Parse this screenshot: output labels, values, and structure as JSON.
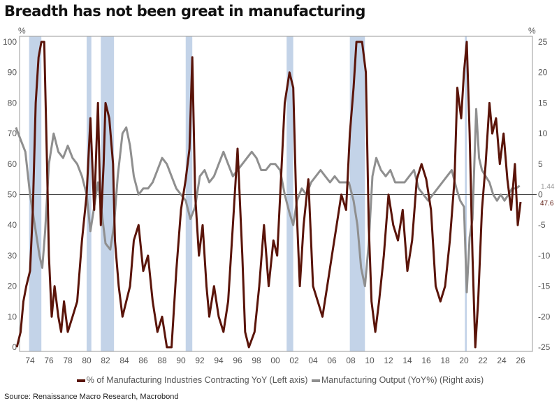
{
  "title": "Breadth has not been great in manufacturing",
  "source": "Source: Renaissance Macro Research, Macrobond",
  "chart_data": {
    "type": "line",
    "title": "Breadth has not been great in manufacturing",
    "left_axis": {
      "unit": "%",
      "range": [
        0,
        100
      ],
      "ticks": [
        0,
        10,
        20,
        30,
        40,
        50,
        60,
        70,
        80,
        90,
        100
      ]
    },
    "right_axis": {
      "unit": "%",
      "range": [
        -25,
        25
      ],
      "ticks": [
        -25,
        -20,
        -15,
        -10,
        -5,
        0,
        5,
        10,
        15,
        20,
        25
      ]
    },
    "x_range": [
      1972.3,
      2026.8
    ],
    "x_ticks": [
      1974,
      1976,
      1978,
      1980,
      1982,
      1984,
      1986,
      1988,
      1990,
      1992,
      1994,
      1996,
      1998,
      2000,
      2002,
      2004,
      2006,
      2008,
      2010,
      2012,
      2014,
      2016,
      2018,
      2020,
      2022,
      2024,
      2026
    ],
    "x_tick_labels": [
      "74",
      "76",
      "78",
      "80",
      "82",
      "84",
      "86",
      "88",
      "90",
      "92",
      "94",
      "96",
      "98",
      "00",
      "02",
      "04",
      "06",
      "08",
      "10",
      "12",
      "14",
      "16",
      "18",
      "20",
      "22",
      "24",
      "26"
    ],
    "reference_line": 50,
    "recessions": [
      [
        1973.9,
        1975.2
      ],
      [
        1980.0,
        1980.5
      ],
      [
        1981.5,
        1982.9
      ],
      [
        1990.5,
        1991.2
      ],
      [
        2001.2,
        2001.9
      ],
      [
        2007.9,
        2009.5
      ],
      [
        2020.1,
        2020.3
      ]
    ],
    "colors": {
      "contracting": "#5a1409",
      "output": "#8f8f8f",
      "recession": "#c3d3e8"
    },
    "series": [
      {
        "name": "% of Manufacturing Industries Contracting YoY  (Left axis)",
        "axis": "left",
        "last_label": "47.6",
        "points": [
          [
            1972.6,
            0
          ],
          [
            1973.0,
            5
          ],
          [
            1973.3,
            15
          ],
          [
            1973.6,
            20
          ],
          [
            1974.0,
            25
          ],
          [
            1974.3,
            45
          ],
          [
            1974.6,
            80
          ],
          [
            1974.9,
            95
          ],
          [
            1975.2,
            100
          ],
          [
            1975.5,
            100
          ],
          [
            1975.8,
            60
          ],
          [
            1976.0,
            30
          ],
          [
            1976.3,
            10
          ],
          [
            1976.6,
            20
          ],
          [
            1977.0,
            10
          ],
          [
            1977.3,
            5
          ],
          [
            1977.6,
            15
          ],
          [
            1978.0,
            5
          ],
          [
            1978.5,
            10
          ],
          [
            1979.0,
            15
          ],
          [
            1979.5,
            35
          ],
          [
            1980.0,
            50
          ],
          [
            1980.4,
            75
          ],
          [
            1980.8,
            45
          ],
          [
            1981.2,
            80
          ],
          [
            1981.5,
            40
          ],
          [
            1981.8,
            60
          ],
          [
            1982.0,
            80
          ],
          [
            1982.4,
            75
          ],
          [
            1982.8,
            60
          ],
          [
            1983.0,
            35
          ],
          [
            1983.4,
            20
          ],
          [
            1983.8,
            10
          ],
          [
            1984.2,
            15
          ],
          [
            1984.6,
            20
          ],
          [
            1985.0,
            35
          ],
          [
            1985.5,
            40
          ],
          [
            1986.0,
            25
          ],
          [
            1986.5,
            30
          ],
          [
            1987.0,
            15
          ],
          [
            1987.5,
            5
          ],
          [
            1988.0,
            10
          ],
          [
            1988.5,
            0
          ],
          [
            1989.0,
            0
          ],
          [
            1989.5,
            25
          ],
          [
            1990.0,
            45
          ],
          [
            1990.5,
            55
          ],
          [
            1990.9,
            65
          ],
          [
            1991.2,
            95
          ],
          [
            1991.5,
            50
          ],
          [
            1991.9,
            30
          ],
          [
            1992.3,
            40
          ],
          [
            1992.7,
            20
          ],
          [
            1993.0,
            10
          ],
          [
            1993.5,
            20
          ],
          [
            1994.0,
            10
          ],
          [
            1994.5,
            5
          ],
          [
            1995.0,
            15
          ],
          [
            1995.5,
            40
          ],
          [
            1996.0,
            65
          ],
          [
            1996.5,
            30
          ],
          [
            1996.8,
            5
          ],
          [
            1997.2,
            0
          ],
          [
            1997.8,
            5
          ],
          [
            1998.3,
            20
          ],
          [
            1998.8,
            40
          ],
          [
            1999.3,
            20
          ],
          [
            1999.8,
            35
          ],
          [
            2000.2,
            30
          ],
          [
            2000.6,
            55
          ],
          [
            2001.0,
            80
          ],
          [
            2001.5,
            90
          ],
          [
            2001.9,
            85
          ],
          [
            2002.2,
            50
          ],
          [
            2002.6,
            20
          ],
          [
            2003.0,
            40
          ],
          [
            2003.5,
            55
          ],
          [
            2004.0,
            20
          ],
          [
            2004.5,
            15
          ],
          [
            2005.0,
            10
          ],
          [
            2005.5,
            20
          ],
          [
            2006.0,
            30
          ],
          [
            2006.5,
            40
          ],
          [
            2007.0,
            50
          ],
          [
            2007.5,
            45
          ],
          [
            2007.9,
            70
          ],
          [
            2008.3,
            85
          ],
          [
            2008.6,
            100
          ],
          [
            2009.2,
            100
          ],
          [
            2009.6,
            90
          ],
          [
            2009.9,
            40
          ],
          [
            2010.2,
            15
          ],
          [
            2010.6,
            5
          ],
          [
            2011.0,
            15
          ],
          [
            2011.5,
            30
          ],
          [
            2012.0,
            50
          ],
          [
            2012.5,
            40
          ],
          [
            2013.0,
            35
          ],
          [
            2013.5,
            45
          ],
          [
            2014.0,
            25
          ],
          [
            2014.5,
            35
          ],
          [
            2015.0,
            55
          ],
          [
            2015.5,
            60
          ],
          [
            2016.0,
            55
          ],
          [
            2016.5,
            45
          ],
          [
            2017.0,
            20
          ],
          [
            2017.5,
            15
          ],
          [
            2018.0,
            20
          ],
          [
            2018.5,
            35
          ],
          [
            2019.0,
            55
          ],
          [
            2019.3,
            85
          ],
          [
            2019.7,
            75
          ],
          [
            2020.0,
            90
          ],
          [
            2020.3,
            100
          ],
          [
            2020.6,
            70
          ],
          [
            2020.9,
            30
          ],
          [
            2021.2,
            0
          ],
          [
            2021.5,
            15
          ],
          [
            2021.9,
            45
          ],
          [
            2022.3,
            60
          ],
          [
            2022.7,
            80
          ],
          [
            2023.0,
            70
          ],
          [
            2023.4,
            75
          ],
          [
            2023.8,
            60
          ],
          [
            2024.2,
            70
          ],
          [
            2024.6,
            55
          ],
          [
            2025.0,
            45
          ],
          [
            2025.4,
            60
          ],
          [
            2025.7,
            40
          ],
          [
            2026.0,
            47.6
          ]
        ]
      },
      {
        "name": "Manufacturing Output (YoY%) (Right axis)",
        "axis": "right",
        "last_label": "1.44",
        "points": [
          [
            1972.5,
            11
          ],
          [
            1973.0,
            9
          ],
          [
            1973.5,
            7
          ],
          [
            1974.0,
            0
          ],
          [
            1974.5,
            -5
          ],
          [
            1975.0,
            -10
          ],
          [
            1975.3,
            -12
          ],
          [
            1975.6,
            -6
          ],
          [
            1976.0,
            5
          ],
          [
            1976.5,
            10
          ],
          [
            1977.0,
            7
          ],
          [
            1977.5,
            6
          ],
          [
            1978.0,
            8
          ],
          [
            1978.5,
            6
          ],
          [
            1979.0,
            5
          ],
          [
            1979.5,
            3
          ],
          [
            1980.0,
            0
          ],
          [
            1980.4,
            -6
          ],
          [
            1980.8,
            -2
          ],
          [
            1981.2,
            2
          ],
          [
            1981.6,
            -3
          ],
          [
            1982.0,
            -8
          ],
          [
            1982.5,
            -9
          ],
          [
            1982.9,
            -5
          ],
          [
            1983.3,
            3
          ],
          [
            1983.8,
            10
          ],
          [
            1984.2,
            11
          ],
          [
            1984.6,
            8
          ],
          [
            1985.0,
            3
          ],
          [
            1985.5,
            0
          ],
          [
            1986.0,
            1
          ],
          [
            1986.5,
            1
          ],
          [
            1987.0,
            2
          ],
          [
            1987.5,
            4
          ],
          [
            1988.0,
            6
          ],
          [
            1988.5,
            5
          ],
          [
            1989.0,
            3
          ],
          [
            1989.5,
            1
          ],
          [
            1990.0,
            0
          ],
          [
            1990.5,
            -1
          ],
          [
            1991.0,
            -4
          ],
          [
            1991.5,
            -2
          ],
          [
            1992.0,
            3
          ],
          [
            1992.5,
            4
          ],
          [
            1993.0,
            2
          ],
          [
            1993.5,
            3
          ],
          [
            1994.0,
            5
          ],
          [
            1994.5,
            7
          ],
          [
            1995.0,
            5
          ],
          [
            1995.5,
            3
          ],
          [
            1996.0,
            4
          ],
          [
            1996.5,
            5
          ],
          [
            1997.0,
            6
          ],
          [
            1997.5,
            7
          ],
          [
            1998.0,
            6
          ],
          [
            1998.5,
            4
          ],
          [
            1999.0,
            4
          ],
          [
            1999.5,
            5
          ],
          [
            2000.0,
            5
          ],
          [
            2000.5,
            4
          ],
          [
            2001.0,
            0
          ],
          [
            2001.5,
            -3
          ],
          [
            2001.9,
            -5
          ],
          [
            2002.3,
            -1
          ],
          [
            2002.8,
            1
          ],
          [
            2003.3,
            0
          ],
          [
            2003.8,
            2
          ],
          [
            2004.3,
            3
          ],
          [
            2004.8,
            4
          ],
          [
            2005.3,
            3
          ],
          [
            2005.8,
            2
          ],
          [
            2006.3,
            3
          ],
          [
            2006.8,
            2
          ],
          [
            2007.3,
            2
          ],
          [
            2007.8,
            2
          ],
          [
            2008.3,
            -1
          ],
          [
            2008.7,
            -5
          ],
          [
            2009.1,
            -12
          ],
          [
            2009.5,
            -15
          ],
          [
            2009.9,
            -8
          ],
          [
            2010.3,
            3
          ],
          [
            2010.7,
            6
          ],
          [
            2011.2,
            4
          ],
          [
            2011.7,
            3
          ],
          [
            2012.2,
            4
          ],
          [
            2012.7,
            2
          ],
          [
            2013.2,
            2
          ],
          [
            2013.7,
            2
          ],
          [
            2014.2,
            3
          ],
          [
            2014.7,
            4
          ],
          [
            2015.2,
            1
          ],
          [
            2015.7,
            0
          ],
          [
            2016.2,
            -1
          ],
          [
            2016.7,
            0
          ],
          [
            2017.2,
            1
          ],
          [
            2017.7,
            2
          ],
          [
            2018.2,
            3
          ],
          [
            2018.7,
            4
          ],
          [
            2019.2,
            1
          ],
          [
            2019.6,
            -1
          ],
          [
            2020.0,
            -2
          ],
          [
            2020.3,
            -16
          ],
          [
            2020.6,
            -7
          ],
          [
            2020.9,
            -4
          ],
          [
            2021.3,
            14
          ],
          [
            2021.6,
            6
          ],
          [
            2021.9,
            4
          ],
          [
            2022.3,
            3
          ],
          [
            2022.7,
            2
          ],
          [
            2023.1,
            0
          ],
          [
            2023.5,
            -1
          ],
          [
            2023.9,
            0
          ],
          [
            2024.3,
            -1
          ],
          [
            2024.7,
            0
          ],
          [
            2025.1,
            1
          ],
          [
            2025.5,
            1
          ],
          [
            2025.9,
            1.44
          ]
        ]
      }
    ]
  }
}
